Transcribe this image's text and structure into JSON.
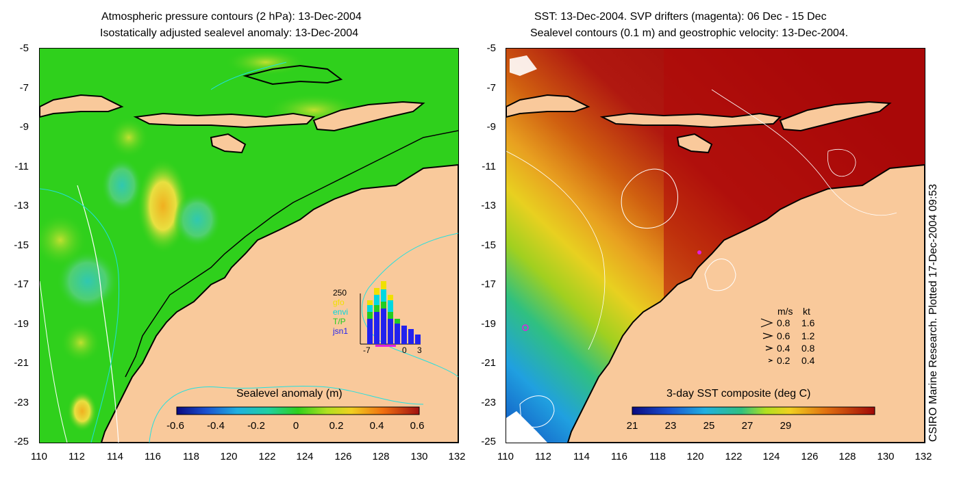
{
  "left_panel": {
    "title_line1": "Atmospheric pressure contours (2 hPa): 13-Dec-2004",
    "title_line2": "Isostatically adjusted sealevel anomaly: 13-Dec-2004",
    "colorbar_title": "Sealevel anomaly (m)",
    "colorbar_ticks": [
      "-0.6",
      "-0.4",
      "-0.2",
      "0",
      "0.2",
      "0.4",
      "0.6"
    ],
    "colors": {
      "ocean": "#2fd01c",
      "land": "#f9c99b",
      "coast": "#000000"
    },
    "histogram": {
      "y_top": "250",
      "legend": [
        "gfo",
        "envi",
        "T/P",
        "jsn1"
      ],
      "legend_colors": [
        "#f0e000",
        "#00d8e0",
        "#22cc22",
        "#2222ee"
      ],
      "x_ticks": [
        "-7",
        "0",
        "3"
      ]
    }
  },
  "right_panel": {
    "title_line1": "SST: 13-Dec-2004. SVP drifters (magenta): 06 Dec - 15 Dec",
    "title_line2": "Sealevel contours (0.1 m) and geostrophic velocity: 13-Dec-2004.",
    "colorbar_title": "3-day SST composite (deg C)",
    "colorbar_ticks": [
      "21",
      "23",
      "25",
      "27",
      "29"
    ],
    "velocity_legend": {
      "header": [
        "m/s",
        "kt"
      ],
      "rows": [
        [
          "0.8",
          "1.6"
        ],
        [
          "0.6",
          "1.2"
        ],
        [
          "0.4",
          "0.8"
        ],
        [
          "0.2",
          "0.4"
        ]
      ]
    },
    "colors": {
      "ocean_warm": "#b00a0a",
      "land": "#f9c99b"
    }
  },
  "axes": {
    "y_ticks": [
      "-5",
      "-7",
      "-9",
      "-11",
      "-13",
      "-15",
      "-17",
      "-19",
      "-21",
      "-23",
      "-25"
    ],
    "x_ticks": [
      "110",
      "112",
      "114",
      "116",
      "118",
      "120",
      "122",
      "124",
      "126",
      "128",
      "130",
      "132"
    ]
  },
  "credit": "CSIRO Marine Research. Plotted 17-Dec-2004 09:53"
}
